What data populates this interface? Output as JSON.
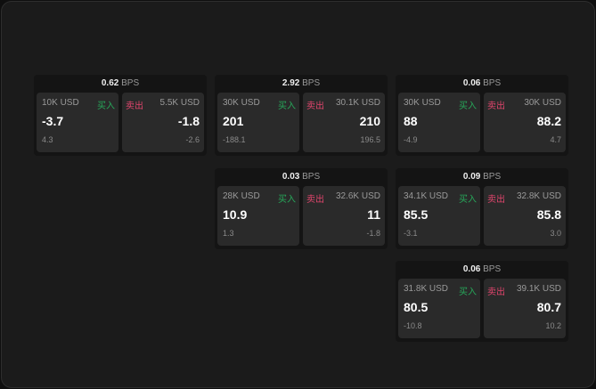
{
  "unit": "BPS",
  "buy_label": "买入",
  "sell_label": "卖出",
  "colors": {
    "buy": "#27a85a",
    "sell": "#e0456c"
  },
  "cards": [
    {
      "spread": "0.62",
      "buy": {
        "qty": "10K USD",
        "price": "-3.7",
        "change": "4.3"
      },
      "sell": {
        "qty": "5.5K USD",
        "price": "-1.8",
        "change": "-2.6"
      }
    },
    {
      "spread": "2.92",
      "buy": {
        "qty": "30K USD",
        "price": "201",
        "change": "-188.1"
      },
      "sell": {
        "qty": "30.1K USD",
        "price": "210",
        "change": "196.5"
      }
    },
    {
      "spread": "0.06",
      "buy": {
        "qty": "30K USD",
        "price": "88",
        "change": "-4.9"
      },
      "sell": {
        "qty": "30K USD",
        "price": "88.2",
        "change": "4.7"
      }
    },
    {
      "spread": "0.03",
      "buy": {
        "qty": "28K USD",
        "price": "10.9",
        "change": "1.3"
      },
      "sell": {
        "qty": "32.6K USD",
        "price": "11",
        "change": "-1.8"
      }
    },
    {
      "spread": "0.09",
      "buy": {
        "qty": "34.1K USD",
        "price": "85.5",
        "change": "-3.1"
      },
      "sell": {
        "qty": "32.8K USD",
        "price": "85.8",
        "change": "3.0"
      }
    },
    {
      "spread": "0.06",
      "buy": {
        "qty": "31.8K USD",
        "price": "80.5",
        "change": "-10.8"
      },
      "sell": {
        "qty": "39.1K USD",
        "price": "80.7",
        "change": "10.2"
      }
    }
  ]
}
